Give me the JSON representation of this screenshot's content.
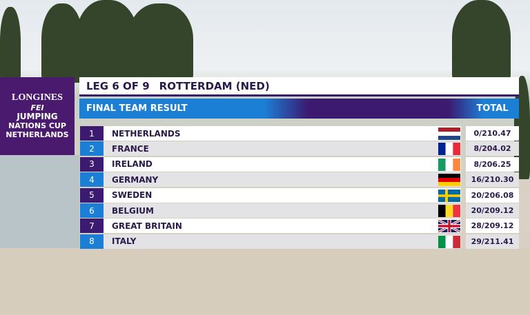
{
  "logo": {
    "brand": "LONGINES",
    "fei": "FEI",
    "line1": "JUMPING",
    "line2": "NATIONS CUP",
    "line3": "NETHERLANDS"
  },
  "header": {
    "leg": "LEG 6 OF 9",
    "venue": "ROTTERDAM (NED)"
  },
  "table": {
    "title": "FINAL TEAM RESULT",
    "total_header": "TOTAL",
    "rows": [
      [
        1,
        "NETHERLANDS",
        "0/210.47"
      ],
      [
        2,
        "FRANCE",
        "8/204.02"
      ],
      [
        3,
        "IRELAND",
        "8/206.25"
      ],
      [
        4,
        "GERMANY",
        "16/210.30"
      ],
      [
        5,
        "SWEDEN",
        "20/206.08"
      ],
      [
        6,
        "BELGIUM",
        "20/209.12"
      ],
      [
        7,
        "GREAT BRITAIN",
        "28/209.12"
      ],
      [
        8,
        "ITALY",
        "29/211.41"
      ]
    ]
  }
}
